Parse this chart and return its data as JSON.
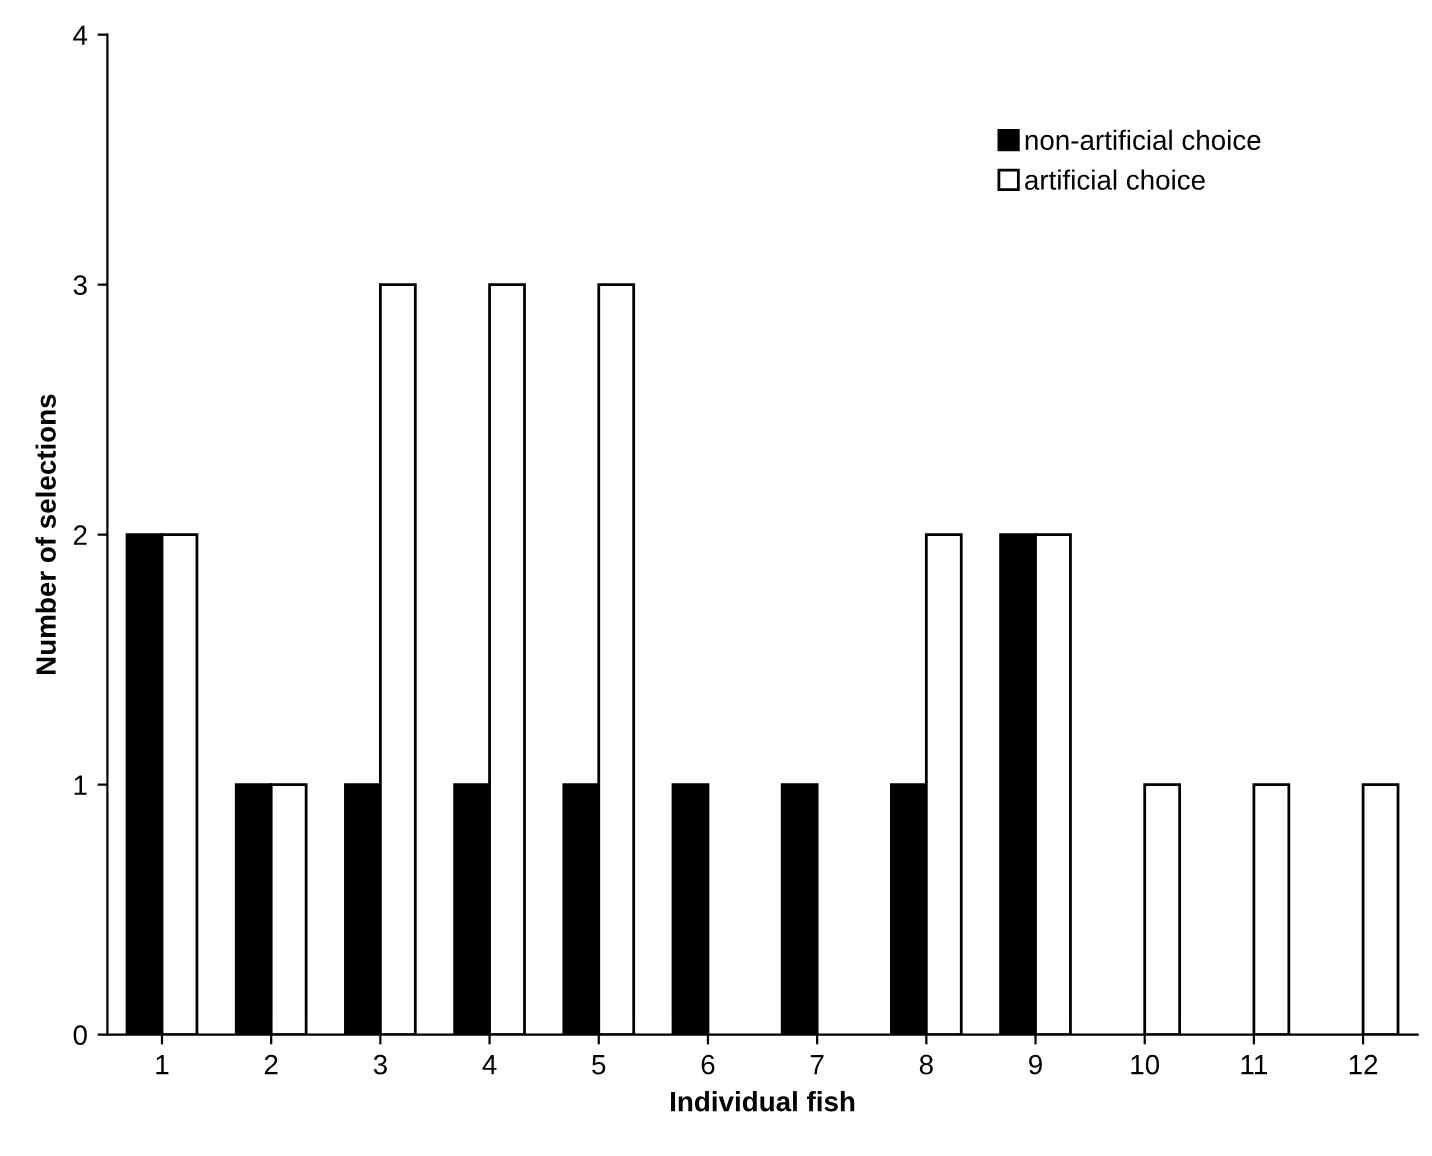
{
  "chart_data": {
    "type": "bar",
    "xlabel": "Individual fish",
    "ylabel": "Number of selections",
    "categories": [
      "1",
      "2",
      "3",
      "4",
      "5",
      "6",
      "7",
      "8",
      "9",
      "10",
      "11",
      "12"
    ],
    "series": [
      {
        "name": "non-artificial choice",
        "color": "#000000",
        "values": [
          2,
          1,
          1,
          1,
          1,
          1,
          1,
          1,
          2,
          0,
          0,
          0
        ]
      },
      {
        "name": "artificial choice",
        "color": "#ffffff",
        "values": [
          2,
          1,
          3,
          3,
          3,
          0,
          0,
          2,
          2,
          1,
          1,
          1
        ]
      }
    ],
    "ylim": [
      0,
      4
    ],
    "yticks": [
      0,
      1,
      2,
      3,
      4
    ],
    "grid": false,
    "legend": "top right"
  }
}
